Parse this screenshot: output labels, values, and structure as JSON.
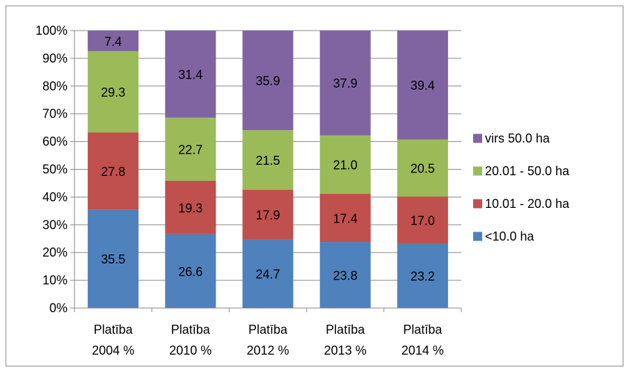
{
  "chart_data": {
    "type": "bar",
    "stacked": true,
    "percent_stacked": true,
    "categories": [
      [
        "Platība",
        "2004 %"
      ],
      [
        "Platība",
        "2010 %"
      ],
      [
        "Platība",
        "2012 %"
      ],
      [
        "Platība",
        "2013 %"
      ],
      [
        "Platība",
        "2014 %"
      ]
    ],
    "series": [
      {
        "name": "<10.0 ha",
        "color": "#4f81bd",
        "values": [
          35.5,
          26.6,
          24.7,
          23.8,
          23.2
        ]
      },
      {
        "name": "10.01 - 20.0 ha",
        "color": "#c0504d",
        "values": [
          27.8,
          19.3,
          17.9,
          17.4,
          17.0
        ]
      },
      {
        "name": "20.01 - 50.0 ha",
        "color": "#9bbb59",
        "values": [
          29.3,
          22.7,
          21.5,
          21.0,
          20.5
        ]
      },
      {
        "name": "virs 50.0 ha",
        "color": "#8064a2",
        "values": [
          7.4,
          31.4,
          35.9,
          37.9,
          39.4
        ]
      }
    ],
    "ylim": [
      0,
      100
    ],
    "yticks": [
      "0%",
      "10%",
      "20%",
      "30%",
      "40%",
      "50%",
      "60%",
      "70%",
      "80%",
      "90%",
      "100%"
    ],
    "grid": true,
    "legend_position": "right",
    "legend_order": [
      "virs 50.0 ha",
      "20.01 - 50.0 ha",
      "10.01 - 20.0 ha",
      "<10.0 ha"
    ]
  }
}
